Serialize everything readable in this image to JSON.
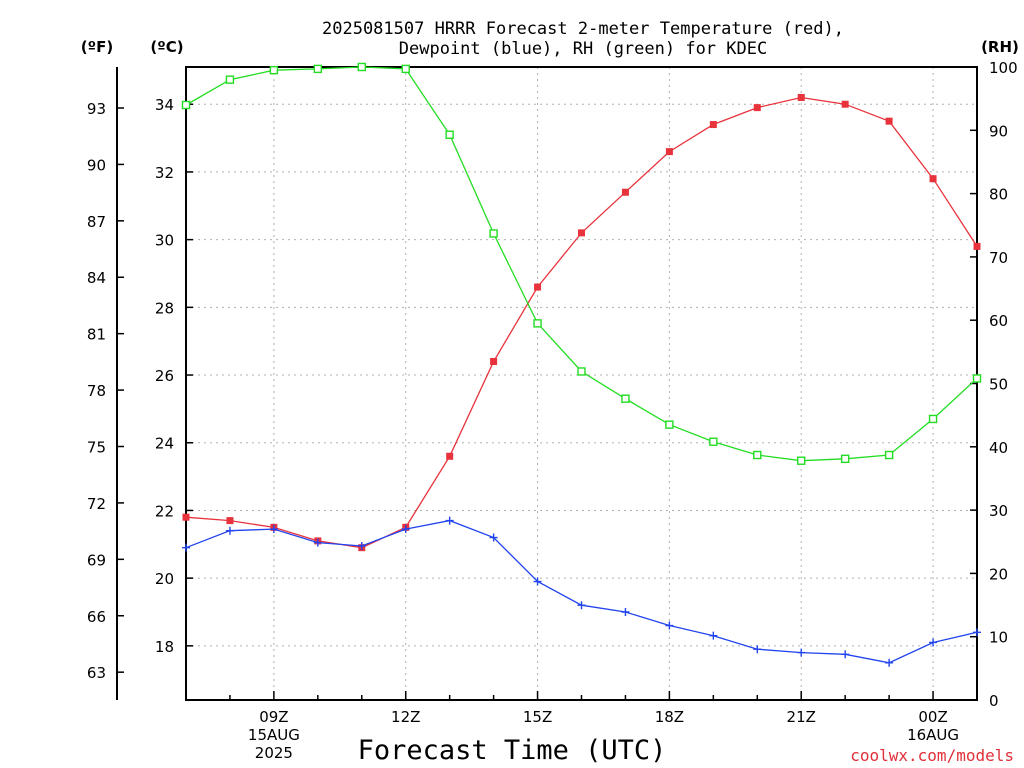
{
  "chart_data": {
    "type": "line",
    "title": "2025081507 HRRR Forecast 2-meter Temperature (red),",
    "subtitle": "Dewpoint (blue), RH (green) for KDEC",
    "xlabel": "Forecast Time (UTC)",
    "credit": "coolwx.com/models",
    "unit_labels": {
      "fahrenheit": "(ºF)",
      "celsius": "(ºC)",
      "rh": "(RH)"
    },
    "x_hours": [
      7,
      8,
      9,
      10,
      11,
      12,
      13,
      14,
      15,
      16,
      17,
      18,
      19,
      20,
      21,
      22,
      23,
      24,
      25
    ],
    "x_range": [
      7,
      25
    ],
    "x_ticks": [
      {
        "hour": 9,
        "lines": [
          "09Z",
          "15AUG",
          "2025"
        ]
      },
      {
        "hour": 12,
        "lines": [
          "12Z"
        ]
      },
      {
        "hour": 15,
        "lines": [
          "15Z"
        ]
      },
      {
        "hour": 18,
        "lines": [
          "18Z"
        ]
      },
      {
        "hour": 21,
        "lines": [
          "21Z"
        ]
      },
      {
        "hour": 24,
        "lines": [
          "00Z",
          "16AUG"
        ]
      }
    ],
    "y_celsius_range": [
      16.4,
      35.1
    ],
    "y_celsius_ticks": [
      "18",
      "20",
      "22",
      "24",
      "26",
      "28",
      "30",
      "32",
      "34"
    ],
    "y_fahrenheit_ticks": [
      "63",
      "66",
      "69",
      "72",
      "75",
      "78",
      "81",
      "84",
      "87",
      "90",
      "93"
    ],
    "y_rh_range": [
      0,
      100
    ],
    "y_rh_ticks": [
      "0",
      "10",
      "20",
      "30",
      "40",
      "50",
      "60",
      "70",
      "80",
      "90",
      "100"
    ],
    "grid": true,
    "series": [
      {
        "name": "Temperature",
        "axis": "celsius",
        "color": "#e8323c",
        "marker": "filled-square",
        "values": [
          21.8,
          21.7,
          21.5,
          21.1,
          20.9,
          21.5,
          23.6,
          26.4,
          28.6,
          30.2,
          31.4,
          32.6,
          33.4,
          33.9,
          34.2,
          34.0,
          33.5,
          31.8,
          29.8
        ]
      },
      {
        "name": "Dewpoint",
        "axis": "celsius",
        "color": "#2244ee",
        "marker": "plus",
        "values": [
          20.9,
          21.4,
          21.45,
          21.05,
          20.95,
          21.45,
          21.7,
          21.2,
          19.9,
          19.2,
          19.0,
          18.6,
          18.3,
          17.9,
          17.8,
          17.75,
          17.5,
          18.1,
          18.4
        ]
      },
      {
        "name": "RH",
        "axis": "rh",
        "color": "#22dd22",
        "marker": "open-square",
        "values": [
          94,
          98,
          99.5,
          99.7,
          100,
          99.7,
          89.3,
          73.7,
          59.5,
          51.9,
          47.6,
          43.5,
          40.8,
          38.7,
          37.8,
          38.1,
          38.7,
          44.4,
          50.8
        ]
      }
    ]
  }
}
